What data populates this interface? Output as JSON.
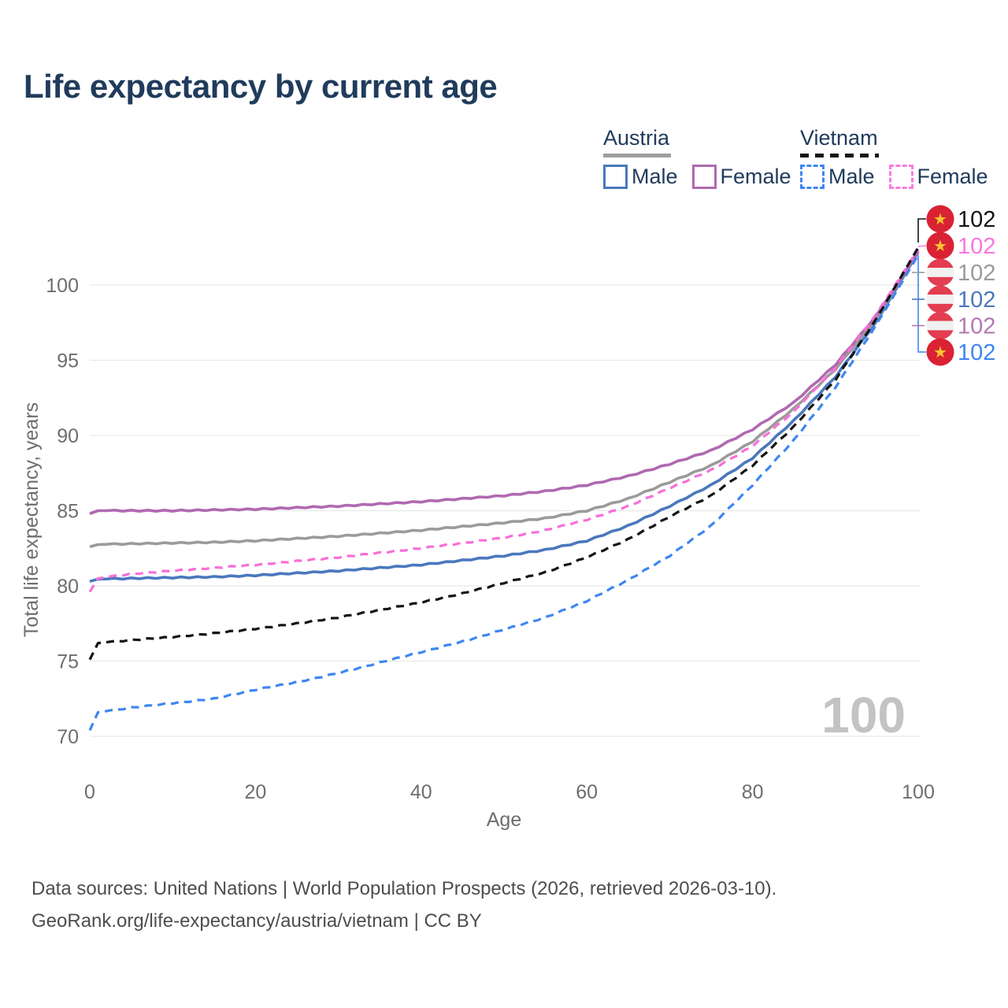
{
  "header": {
    "title": "Life expectancy by current age"
  },
  "legend": {
    "austria": {
      "label": "Austria",
      "male": "Male",
      "female": "Female"
    },
    "vietnam": {
      "label": "Vietnam",
      "male": "Male",
      "female": "Female"
    }
  },
  "colors": {
    "austria_male": "#4a78bd",
    "austria_female": "#b069b0",
    "austria_total": "#9b9b9b",
    "vietnam_male": "#3e86f2",
    "vietnam_female": "#f76fd8",
    "vietnam_total": "#141414",
    "title_text": "#203b5c",
    "axis_text": "#6e6e6e",
    "grid": "#e9e9e9",
    "watermark": "#c3c3c3",
    "vietnam_flag_red": "#da2235",
    "austria_flag_red": "#e23d51",
    "flag_band_white": "#f1f1f1",
    "flag_star_gold": "#f6c62f"
  },
  "chart_data": {
    "type": "line",
    "title": "Life expectancy by current age",
    "xlabel": "Age",
    "ylabel": "Total life expectancy, years",
    "x_ticks": [
      0,
      20,
      40,
      60,
      80,
      100
    ],
    "y_ticks": [
      70,
      75,
      80,
      85,
      90,
      95,
      100
    ],
    "xlim": [
      0,
      100
    ],
    "ylim": [
      70,
      103
    ],
    "grid": "horizontal",
    "legend_position": "top-right",
    "ages": [
      0,
      1,
      5,
      10,
      15,
      20,
      25,
      30,
      35,
      40,
      45,
      50,
      55,
      60,
      65,
      70,
      75,
      80,
      85,
      90,
      95,
      100
    ],
    "series": [
      {
        "id": "austria_male",
        "name": "Austria Male",
        "country": "Austria",
        "sex": "Male",
        "style": "solid",
        "color": "#4a78bd",
        "end_label": "102",
        "values": [
          80.3,
          80.45,
          80.5,
          80.55,
          80.6,
          80.7,
          80.85,
          81.0,
          81.2,
          81.4,
          81.7,
          82.0,
          82.4,
          83.0,
          84.0,
          85.3,
          86.7,
          88.5,
          91.0,
          93.9,
          97.6,
          102.2
        ]
      },
      {
        "id": "austria_total",
        "name": "Austria",
        "country": "Austria",
        "sex": "Total",
        "style": "solid",
        "color": "#9b9b9b",
        "end_label": "102",
        "values": [
          82.6,
          82.75,
          82.8,
          82.85,
          82.9,
          83.0,
          83.15,
          83.3,
          83.5,
          83.7,
          83.95,
          84.2,
          84.5,
          85.0,
          85.8,
          86.9,
          88.0,
          89.6,
          91.8,
          94.4,
          97.8,
          102.3
        ]
      },
      {
        "id": "austria_female",
        "name": "Austria Female",
        "country": "Austria",
        "sex": "Female",
        "style": "solid",
        "color": "#b069b0",
        "end_label": "102",
        "values": [
          84.8,
          85.0,
          85.0,
          85.0,
          85.05,
          85.1,
          85.2,
          85.3,
          85.45,
          85.6,
          85.8,
          86.0,
          86.3,
          86.7,
          87.3,
          88.1,
          89.0,
          90.4,
          92.2,
          94.7,
          98.0,
          102.2
        ]
      },
      {
        "id": "vietnam_male",
        "name": "Vietnam Male",
        "country": "Vietnam",
        "sex": "Male",
        "style": "dashed",
        "color": "#3e86f2",
        "end_label": "102",
        "values": [
          70.4,
          71.6,
          71.9,
          72.2,
          72.5,
          73.1,
          73.6,
          74.2,
          74.9,
          75.6,
          76.3,
          77.1,
          77.9,
          79.0,
          80.4,
          82.0,
          84.0,
          86.7,
          89.7,
          93.2,
          97.4,
          102.0
        ]
      },
      {
        "id": "vietnam_female",
        "name": "Vietnam Female",
        "country": "Vietnam",
        "sex": "Female",
        "style": "dashed",
        "color": "#f76fd8",
        "end_label": "102",
        "values": [
          79.6,
          80.5,
          80.8,
          81.0,
          81.2,
          81.4,
          81.65,
          81.9,
          82.2,
          82.5,
          82.85,
          83.2,
          83.7,
          84.4,
          85.3,
          86.5,
          87.7,
          89.3,
          91.6,
          94.5,
          98.1,
          102.4
        ]
      },
      {
        "id": "vietnam_total",
        "name": "Vietnam",
        "country": "Vietnam",
        "sex": "Total",
        "style": "dashed",
        "color": "#141414",
        "end_label": "102",
        "values": [
          75.1,
          76.2,
          76.4,
          76.6,
          76.85,
          77.15,
          77.5,
          77.9,
          78.4,
          78.9,
          79.5,
          80.2,
          80.9,
          81.9,
          83.1,
          84.6,
          86.0,
          88.0,
          90.6,
          93.7,
          97.8,
          102.5
        ]
      }
    ]
  },
  "end_labels": [
    {
      "flag": "vietnam",
      "series_id": "vietnam_total",
      "label": "102",
      "color": "#141414"
    },
    {
      "flag": "vietnam",
      "series_id": "vietnam_female",
      "label": "102",
      "color": "#fb76e0"
    },
    {
      "flag": "austria",
      "series_id": "austria_total",
      "label": "102",
      "color": "#9b9b9b"
    },
    {
      "flag": "austria",
      "series_id": "austria_male",
      "label": "102",
      "color": "#4a78bd"
    },
    {
      "flag": "austria",
      "series_id": "austria_female",
      "label": "102",
      "color": "#b478b4"
    },
    {
      "flag": "vietnam",
      "series_id": "vietnam_male",
      "label": "102",
      "color": "#3e86f2"
    }
  ],
  "watermark": "100",
  "footer": {
    "line1": "Data sources: United Nations | World Population Prospects (2026, retrieved 2026-03-10).",
    "line2": "GeoRank.org/life-expectancy/austria/vietnam | CC BY"
  }
}
